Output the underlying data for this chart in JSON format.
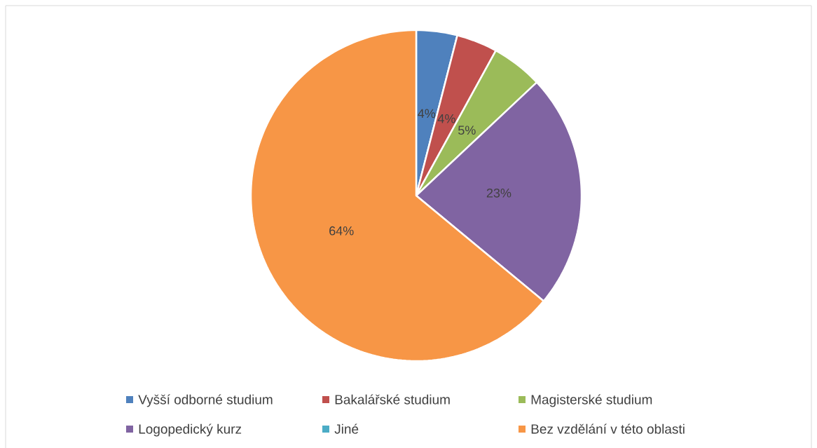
{
  "chart_data": {
    "type": "pie",
    "categories": [
      "Vyšší odborné studium",
      "Bakalářské studium",
      "Magisterské studium",
      "Logopedický kurz",
      "Jiné",
      "Bez vzdělání v této oblasti"
    ],
    "values": [
      4,
      4,
      5,
      23,
      0,
      64
    ],
    "colors": [
      "#4f81bd",
      "#c0504d",
      "#9bbb59",
      "#8064a2",
      "#4bacc6",
      "#f79646"
    ],
    "value_labels": [
      "4%",
      "4%",
      "5%",
      "23%",
      null,
      "64%"
    ],
    "legend": "bottom"
  }
}
